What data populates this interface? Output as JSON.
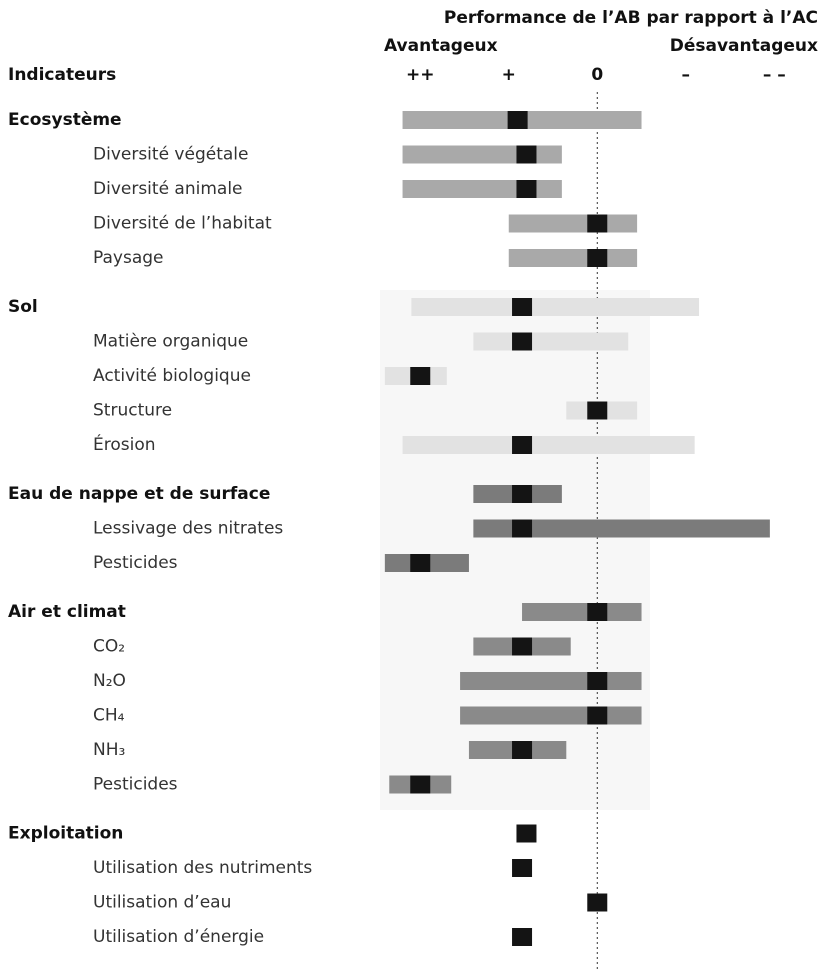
{
  "chart_data": {
    "type": "range",
    "title": "Performance de l’AB par rapport à l’AC",
    "left_label": "Avantageux",
    "right_label": "Désavantageux",
    "row_header": "Indicateurs",
    "xlim": [
      -2.5,
      2.2
    ],
    "xticks": [
      {
        "value": -2,
        "label": "++"
      },
      {
        "value": -1,
        "label": "+"
      },
      0,
      {
        "value": 1,
        "label": "–"
      },
      {
        "value": 2,
        "label": "– –"
      }
    ],
    "zero_line": true,
    "groups": [
      {
        "name": "Ecosystème",
        "color": "#a9a9a9",
        "low": -2.2,
        "high": 0.5,
        "marker": -0.9,
        "items": [
          {
            "name": "Diversité végétale",
            "low": -2.2,
            "high": -0.4,
            "marker": -0.8
          },
          {
            "name": "Diversité animale",
            "low": -2.2,
            "high": -0.4,
            "marker": -0.8
          },
          {
            "name": "Diversité de l’habitat",
            "low": -1.0,
            "high": 0.45,
            "marker": 0
          },
          {
            "name": "Paysage",
            "low": -1.0,
            "high": 0.45,
            "marker": 0
          }
        ]
      },
      {
        "name": "Sol",
        "color": "#e2e2e2",
        "low": -2.1,
        "high": 1.15,
        "marker": -0.85,
        "items": [
          {
            "name": "Matière organique",
            "low": -1.4,
            "high": 0.35,
            "marker": -0.85
          },
          {
            "name": "Activité biologique",
            "low": -2.4,
            "high": -1.7,
            "marker": -2.0
          },
          {
            "name": "Structure",
            "low": -0.35,
            "high": 0.45,
            "marker": 0
          },
          {
            "name": "Érosion",
            "low": -2.2,
            "high": 1.1,
            "marker": -0.85
          }
        ]
      },
      {
        "name": "Eau de nappe et de surface",
        "color": "#7b7b7b",
        "low": -1.4,
        "high": -0.4,
        "marker": -0.85,
        "items": [
          {
            "name": "Lessivage des nitrates",
            "low": -1.4,
            "high": 1.95,
            "marker": -0.85
          },
          {
            "name": "Pesticides",
            "low": -2.4,
            "high": -1.45,
            "marker": -2.0
          }
        ]
      },
      {
        "name": "Air et climat",
        "color": "#8a8a8a",
        "low": -0.85,
        "high": 0.5,
        "marker": 0,
        "items": [
          {
            "name": "CO₂",
            "low": -1.4,
            "high": -0.3,
            "marker": -0.85
          },
          {
            "name": "N₂O",
            "low": -1.55,
            "high": 0.5,
            "marker": 0
          },
          {
            "name": "CH₄",
            "low": -1.55,
            "high": 0.5,
            "marker": 0
          },
          {
            "name": "NH₃",
            "low": -1.45,
            "high": -0.35,
            "marker": -0.85
          },
          {
            "name": "Pesticides",
            "low": -2.35,
            "high": -1.65,
            "marker": -2.0
          }
        ]
      },
      {
        "name": "Exploitation",
        "color": "#999999",
        "low": null,
        "high": null,
        "marker": -0.8,
        "items": [
          {
            "name": "Utilisation des nutriments",
            "low": null,
            "high": null,
            "marker": -0.85
          },
          {
            "name": "Utilisation d’eau",
            "low": null,
            "high": null,
            "marker": 0
          },
          {
            "name": "Utilisation d’énergie",
            "low": null,
            "high": null,
            "marker": -0.85
          }
        ]
      }
    ]
  }
}
